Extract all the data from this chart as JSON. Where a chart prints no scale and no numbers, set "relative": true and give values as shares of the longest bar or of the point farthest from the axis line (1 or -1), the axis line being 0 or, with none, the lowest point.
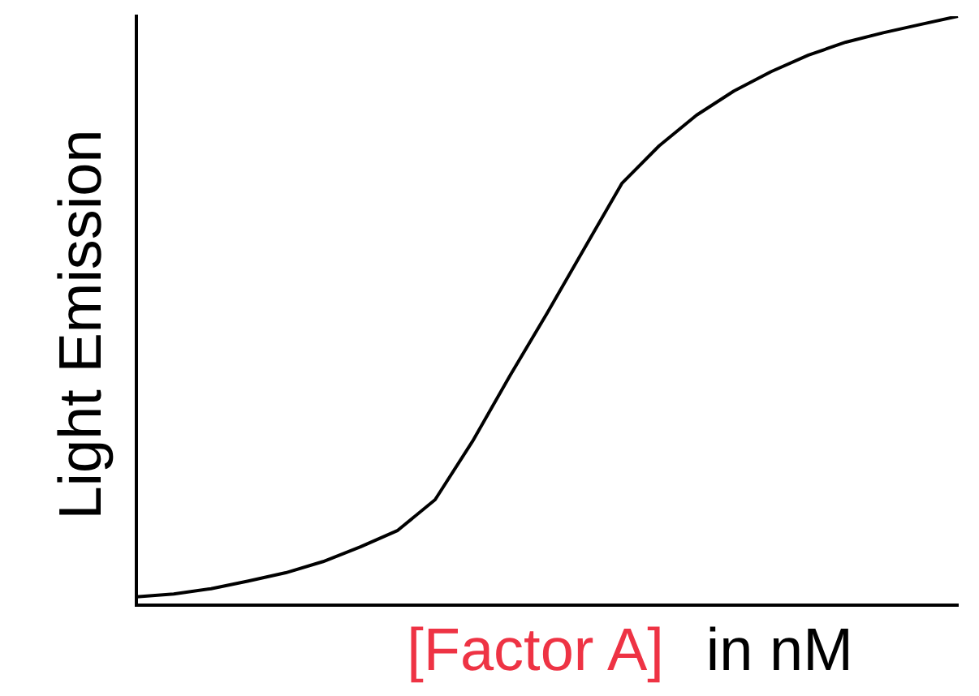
{
  "chart_data": {
    "type": "line",
    "relative": true,
    "xlabel": "[Factor A]",
    "ylabel": "Light Emission",
    "annotations": [
      "in nM"
    ],
    "categories": [
      null,
      null,
      null,
      null,
      null,
      null,
      null,
      null,
      null,
      null,
      null,
      null,
      null,
      null,
      null,
      null,
      null,
      null,
      null,
      null,
      null,
      null,
      null
    ],
    "series": [
      {
        "color": "#000000",
        "values": [
          0.014,
          0.019,
          0.028,
          0.041,
          0.055,
          0.074,
          0.099,
          0.127,
          0.179,
          0.278,
          0.389,
          0.496,
          0.606,
          0.716,
          0.78,
          0.832,
          0.873,
          0.906,
          0.934,
          0.956,
          0.972,
          0.986,
          1
        ]
      }
    ],
    "grid": false,
    "legend": false,
    "tick_labels": false,
    "marker": "none",
    "line_style": "solid"
  }
}
